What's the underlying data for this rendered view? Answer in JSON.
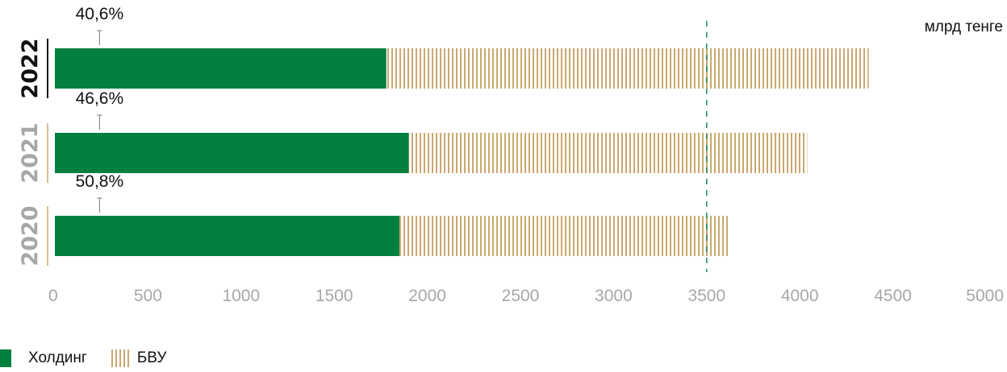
{
  "chart_data": {
    "type": "bar",
    "orientation": "horizontal",
    "stacked": true,
    "unit_label": "млрд тенге",
    "categories": [
      "2022",
      "2021",
      "2020"
    ],
    "highlighted_category": "2022",
    "series": [
      {
        "name": "Холдинг",
        "values": [
          1780,
          1900,
          1850
        ],
        "color": "#007f3e",
        "pattern": "solid"
      },
      {
        "name": "БВУ",
        "values": [
          2590,
          2140,
          1770
        ],
        "color": "#c8a870",
        "pattern": "vertical-stripes"
      }
    ],
    "share_labels": [
      "40,6%",
      "46,6%",
      "50,8%"
    ],
    "reference_line": {
      "x": 3500,
      "style": "dashed",
      "color": "#1a8a63"
    },
    "xlim": [
      0,
      5000
    ],
    "xticks": [
      0,
      500,
      1000,
      1500,
      2000,
      2500,
      3000,
      3500,
      4000,
      4500,
      5000
    ],
    "xtick_labels": [
      "0",
      "500",
      "1000",
      "1500",
      "2000",
      "2500",
      "3000",
      "3500",
      "4000",
      "4500",
      "5000"
    ],
    "legend_position": "bottom-left",
    "year_label_colors": {
      "highlighted": "#111111",
      "other": "#a7a7a7"
    }
  }
}
